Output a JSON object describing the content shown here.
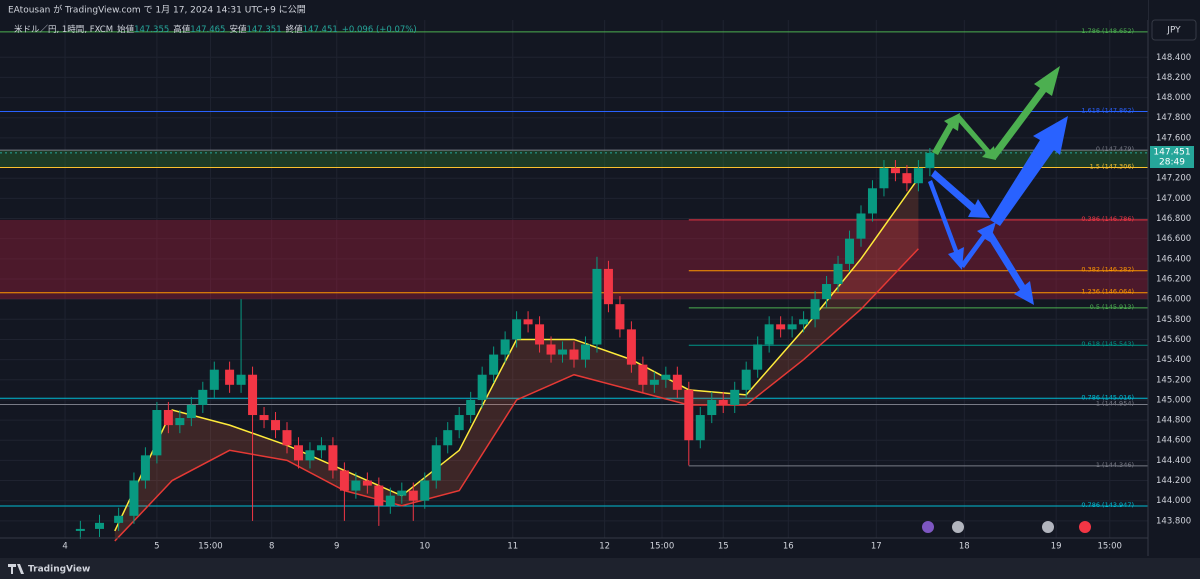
{
  "header": "EAtousan が TradingView.com で 1月 17, 2024 14:31 UTC+9 に公開",
  "footer": "TradingView",
  "chart_data": {
    "type": "candlestick",
    "symbol": "米ドル／円, 1時間, FXCM",
    "ohlc_legend": [
      {
        "label": "始値",
        "value": 147.355
      },
      {
        "label": "高値",
        "value": 147.465
      },
      {
        "label": "安値",
        "value": 147.351
      },
      {
        "label": "終値",
        "value": 147.451
      }
    ],
    "change": "+0.096 (+0.07%)",
    "currency": "JPY",
    "last_price": 147.451,
    "countdown": "28:49",
    "up_color": "#089981",
    "down_color": "#f23645",
    "grid": true,
    "xlim": [
      0,
      300
    ],
    "ylim": [
      143.61,
      148.75
    ],
    "xticks": [
      {
        "value": 17,
        "label": "4"
      },
      {
        "value": 41,
        "label": "5"
      },
      {
        "value": 55,
        "label": "15:00"
      },
      {
        "value": 71,
        "label": "8"
      },
      {
        "value": 88,
        "label": "9"
      },
      {
        "value": 111,
        "label": "10"
      },
      {
        "value": 134,
        "label": "11"
      },
      {
        "value": 158,
        "label": "12"
      },
      {
        "value": 173,
        "label": "15:00"
      },
      {
        "value": 189,
        "label": "15"
      },
      {
        "value": 206,
        "label": "16"
      },
      {
        "value": 229,
        "label": "17"
      },
      {
        "value": 252,
        "label": "18"
      },
      {
        "value": 276,
        "label": "19"
      },
      {
        "value": 290,
        "label": "15:00"
      }
    ],
    "yticks": [
      {
        "value": 143.8,
        "label": "143.800"
      },
      {
        "value": 144.0,
        "label": "144.000"
      },
      {
        "value": 144.2,
        "label": "144.200"
      },
      {
        "value": 144.4,
        "label": "144.400"
      },
      {
        "value": 144.6,
        "label": "144.600"
      },
      {
        "value": 144.8,
        "label": "144.800"
      },
      {
        "value": 145.0,
        "label": "145.000"
      },
      {
        "value": 145.2,
        "label": "145.200"
      },
      {
        "value": 145.4,
        "label": "145.400"
      },
      {
        "value": 145.6,
        "label": "145.600"
      },
      {
        "value": 145.8,
        "label": "145.800"
      },
      {
        "value": 146.0,
        "label": "146.000"
      },
      {
        "value": 146.2,
        "label": "146.200"
      },
      {
        "value": 146.4,
        "label": "146.400"
      },
      {
        "value": 146.6,
        "label": "146.600"
      },
      {
        "value": 146.8,
        "label": "146.800"
      },
      {
        "value": 147.0,
        "label": "147.000"
      },
      {
        "value": 147.2,
        "label": "147.200"
      },
      {
        "value": 147.6,
        "label": "147.600"
      },
      {
        "value": 147.8,
        "label": "147.800"
      },
      {
        "value": 148.0,
        "label": "148.000"
      },
      {
        "value": 148.2,
        "label": "148.200"
      },
      {
        "value": 148.4,
        "label": "148.400"
      }
    ],
    "x": [
      21,
      26,
      31,
      35,
      38,
      41,
      44,
      47,
      50,
      53,
      56,
      60,
      63,
      66,
      69,
      72,
      75,
      78,
      81,
      84,
      87,
      90,
      93,
      96,
      99,
      102,
      105,
      108,
      111,
      114,
      117,
      120,
      123,
      126,
      129,
      132,
      135,
      138,
      141,
      144,
      147,
      150,
      153,
      156,
      159,
      162,
      165,
      168,
      171,
      174,
      177,
      180,
      183,
      186,
      189,
      192,
      195,
      198,
      201,
      204,
      207,
      210,
      213,
      216,
      219,
      222,
      225,
      228,
      231,
      234,
      237,
      240,
      243
    ],
    "ohlc": [
      [
        143.7,
        143.8,
        143.62,
        143.72
      ],
      [
        143.72,
        143.86,
        143.64,
        143.78
      ],
      [
        143.78,
        143.93,
        143.7,
        143.85
      ],
      [
        143.85,
        144.28,
        143.77,
        144.2
      ],
      [
        144.2,
        144.53,
        144.12,
        144.45
      ],
      [
        144.45,
        144.98,
        144.37,
        144.9
      ],
      [
        144.9,
        144.98,
        144.67,
        144.75
      ],
      [
        144.75,
        144.9,
        144.67,
        144.82
      ],
      [
        144.82,
        145.03,
        144.74,
        144.95
      ],
      [
        144.95,
        145.18,
        144.87,
        145.1
      ],
      [
        145.1,
        145.38,
        145.02,
        145.3
      ],
      [
        145.3,
        145.38,
        145.07,
        145.15
      ],
      [
        145.15,
        146.0,
        145.07,
        145.25
      ],
      [
        145.25,
        145.33,
        143.8,
        144.85
      ],
      [
        144.85,
        144.93,
        144.72,
        144.8
      ],
      [
        144.8,
        144.88,
        144.62,
        144.7
      ],
      [
        144.7,
        144.78,
        144.47,
        144.55
      ],
      [
        144.55,
        144.63,
        144.32,
        144.4
      ],
      [
        144.4,
        144.58,
        144.32,
        144.5
      ],
      [
        144.5,
        144.63,
        144.42,
        144.55
      ],
      [
        144.55,
        144.63,
        144.22,
        144.3
      ],
      [
        144.3,
        144.38,
        143.8,
        144.1
      ],
      [
        144.1,
        144.28,
        144.02,
        144.2
      ],
      [
        144.2,
        144.28,
        144.07,
        144.15
      ],
      [
        144.15,
        144.23,
        143.75,
        143.95
      ],
      [
        143.95,
        144.13,
        143.87,
        144.05
      ],
      [
        144.05,
        144.18,
        143.97,
        144.1
      ],
      [
        144.1,
        144.18,
        143.8,
        144.0
      ],
      [
        144.0,
        144.28,
        143.92,
        144.2
      ],
      [
        144.2,
        144.63,
        144.12,
        144.55
      ],
      [
        144.55,
        144.78,
        144.47,
        144.7
      ],
      [
        144.7,
        144.93,
        144.62,
        144.85
      ],
      [
        144.85,
        145.08,
        144.77,
        145.0
      ],
      [
        145.0,
        145.33,
        144.92,
        145.25
      ],
      [
        145.25,
        145.53,
        145.17,
        145.45
      ],
      [
        145.45,
        145.68,
        145.37,
        145.6
      ],
      [
        145.6,
        145.88,
        145.52,
        145.8
      ],
      [
        145.8,
        145.88,
        145.67,
        145.75
      ],
      [
        145.75,
        145.83,
        145.47,
        145.55
      ],
      [
        145.55,
        145.63,
        145.37,
        145.45
      ],
      [
        145.45,
        145.58,
        145.37,
        145.5
      ],
      [
        145.5,
        145.58,
        145.32,
        145.4
      ],
      [
        145.4,
        145.63,
        145.32,
        145.55
      ],
      [
        145.55,
        146.42,
        145.47,
        146.3
      ],
      [
        146.3,
        146.38,
        145.87,
        145.95
      ],
      [
        145.95,
        146.03,
        145.62,
        145.7
      ],
      [
        145.7,
        145.78,
        145.27,
        145.35
      ],
      [
        145.35,
        145.43,
        145.07,
        145.15
      ],
      [
        145.15,
        145.28,
        145.07,
        145.2
      ],
      [
        145.2,
        145.33,
        145.12,
        145.25
      ],
      [
        145.25,
        145.33,
        145.02,
        145.1
      ],
      [
        145.1,
        145.18,
        144.35,
        144.6
      ],
      [
        144.6,
        144.93,
        144.52,
        144.85
      ],
      [
        144.85,
        145.08,
        144.77,
        145.0
      ],
      [
        145.0,
        145.08,
        144.87,
        144.95
      ],
      [
        144.95,
        145.18,
        144.87,
        145.1
      ],
      [
        145.1,
        145.38,
        145.02,
        145.3
      ],
      [
        145.3,
        145.63,
        145.22,
        145.55
      ],
      [
        145.55,
        145.83,
        145.47,
        145.75
      ],
      [
        145.75,
        145.83,
        145.62,
        145.7
      ],
      [
        145.7,
        145.83,
        145.62,
        145.75
      ],
      [
        145.75,
        145.88,
        145.67,
        145.8
      ],
      [
        145.8,
        146.08,
        145.72,
        146.0
      ],
      [
        146.0,
        146.23,
        145.92,
        146.15
      ],
      [
        146.15,
        146.43,
        146.07,
        146.35
      ],
      [
        146.35,
        146.68,
        146.27,
        146.6
      ],
      [
        146.6,
        146.93,
        146.52,
        146.85
      ],
      [
        146.85,
        147.18,
        146.77,
        147.1
      ],
      [
        147.1,
        147.38,
        147.02,
        147.3
      ],
      [
        147.3,
        147.38,
        147.17,
        147.25
      ],
      [
        147.25,
        147.33,
        147.07,
        147.15
      ],
      [
        147.15,
        147.38,
        147.07,
        147.3
      ],
      [
        147.3,
        147.5,
        147.22,
        147.45
      ]
    ],
    "ribbon": {
      "x": [
        30,
        45,
        60,
        75,
        90,
        105,
        120,
        135,
        150,
        165,
        180,
        195,
        210,
        225,
        240
      ],
      "upper": [
        143.7,
        144.9,
        144.75,
        144.55,
        144.3,
        144.05,
        144.5,
        145.6,
        145.6,
        145.4,
        145.1,
        145.05,
        145.7,
        146.4,
        147.2
      ],
      "lower": [
        143.6,
        144.2,
        144.5,
        144.4,
        144.1,
        143.95,
        144.1,
        145.0,
        145.25,
        145.1,
        144.95,
        144.95,
        145.4,
        145.9,
        146.5
      ]
    },
    "zones": [
      {
        "from": 147.306,
        "to": 147.479,
        "color": "#2e7d32"
      },
      {
        "from": 146.0,
        "to": 146.786,
        "color": "#b71c3c"
      }
    ],
    "levels": [
      {
        "label": "1.786 (148.652)",
        "value": 148.652,
        "color": "#4caf50",
        "start": 0
      },
      {
        "label": "1.618 (147.862)",
        "value": 147.862,
        "color": "#2962ff",
        "start": 0
      },
      {
        "label": "0 (147.479)",
        "value": 147.479,
        "color": "#787b86",
        "start": 0
      },
      {
        "label": "1.5 (147.306)",
        "value": 147.306,
        "color": "#fbc02d",
        "start": 0
      },
      {
        "label": "0.386 (146.786)",
        "value": 146.786,
        "color": "#f23645",
        "start": 180
      },
      {
        "label": "0.382 (146.282)",
        "value": 146.282,
        "color": "#ff9800",
        "start": 180
      },
      {
        "label": "1.236 (146.064)",
        "value": 146.064,
        "color": "#ff9800",
        "start": 0
      },
      {
        "label": "0.5 (145.913)",
        "value": 145.913,
        "color": "#4caf50",
        "start": 180
      },
      {
        "label": "0.618 (145.543)",
        "value": 145.543,
        "color": "#009688",
        "start": 180
      },
      {
        "label": "0.786 (145.016)",
        "value": 145.016,
        "color": "#00bcd4",
        "start": 0
      },
      {
        "label": "1 (144.954)",
        "value": 144.954,
        "color": "#787b86",
        "start": 0
      },
      {
        "label": "1 (144.346)",
        "value": 144.346,
        "color": "#787b86",
        "start": 180
      },
      {
        "label": "0.786 (143.947)",
        "value": 143.947,
        "color": "#00bcd4",
        "start": 0
      }
    ]
  }
}
